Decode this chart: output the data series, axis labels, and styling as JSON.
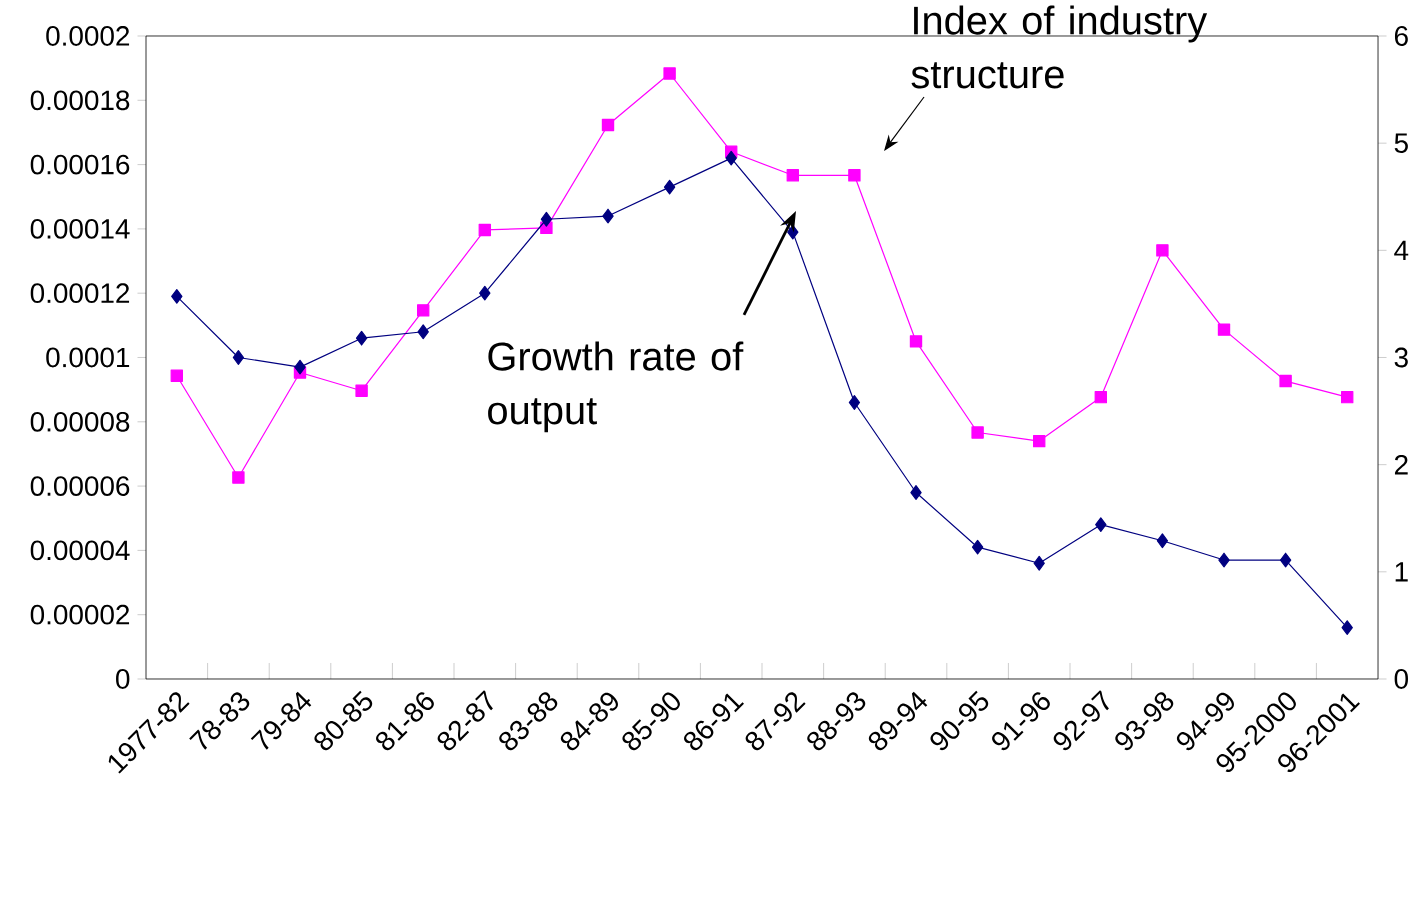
{
  "chart_data": {
    "type": "line",
    "annotations": [
      "Index of industry structure",
      "Growth rate of output"
    ],
    "categories": [
      "1977-82",
      "78-83",
      "79-84",
      "80-85",
      "81-86",
      "82-87",
      "83-88",
      "84-89",
      "85-90",
      "86-91",
      "87-92",
      "88-93",
      "89-94",
      "90-95",
      "91-96",
      "92-97",
      "93-98",
      "94-99",
      "95-2000",
      "96-2001"
    ],
    "series": [
      {
        "color": "#000080",
        "marker": "diamond",
        "values": [
          0.000119,
          0.0001,
          9.7e-05,
          0.000106,
          0.000108,
          0.00012,
          0.000143,
          0.000144,
          0.000153,
          0.000162,
          0.000139,
          8.6e-05,
          5.8e-05,
          4.1e-05,
          3.6e-05,
          4.8e-05,
          4.3e-05,
          3.7e-05,
          3.7e-05,
          1.6e-05
        ]
      },
      {
        "color": "#ff00ff",
        "marker": "square",
        "axis": "y2",
        "values": [
          2.83,
          1.88,
          2.86,
          2.69,
          3.44,
          4.19,
          4.21,
          5.17,
          5.65,
          4.92,
          4.7,
          4.7,
          3.15,
          2.3,
          2.22,
          2.63,
          4.0,
          3.26,
          2.78,
          2.63
        ]
      }
    ],
    "ylim": [
      0,
      0.0002
    ],
    "yticks": [
      {
        "value": 0,
        "label": "0"
      },
      {
        "value": 2e-05,
        "label": "0.00002"
      },
      {
        "value": 4e-05,
        "label": "0.00004"
      },
      {
        "value": 6e-05,
        "label": "0.00006"
      },
      {
        "value": 8e-05,
        "label": "0.00008"
      },
      {
        "value": 0.0001,
        "label": "0.0001"
      },
      {
        "value": 0.00012,
        "label": "0.00012"
      },
      {
        "value": 0.00014,
        "label": "0.00014"
      },
      {
        "value": 0.00016,
        "label": "0.00016"
      },
      {
        "value": 0.00018,
        "label": "0.00018"
      },
      {
        "value": 0.0002,
        "label": "0.0002"
      }
    ],
    "y2lim": [
      0,
      6
    ],
    "y2ticks": [
      0,
      1,
      2,
      3,
      4,
      5,
      6
    ],
    "grid": false,
    "line_style": "solid"
  }
}
